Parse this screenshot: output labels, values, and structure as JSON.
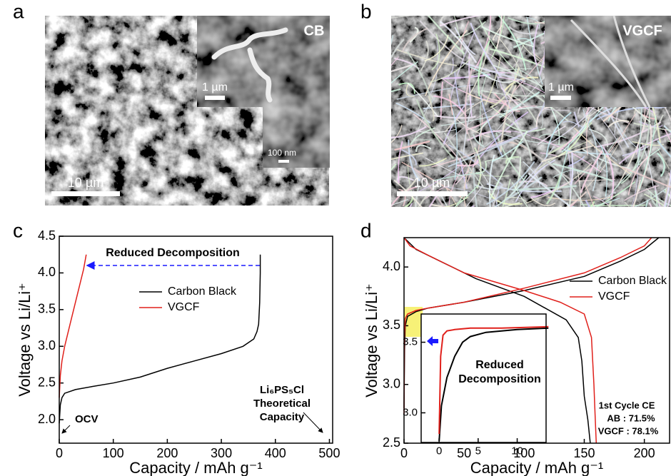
{
  "panels": [
    {
      "label": "a",
      "inset_label": "CB",
      "scale_bars": [
        "1 µm",
        "100 nm",
        "10 µm"
      ]
    },
    {
      "label": "b",
      "inset_label": "VGCF",
      "scale_bars": [
        "1 µm",
        "10 µm"
      ]
    }
  ],
  "chart_data": [
    {
      "type": "line",
      "panel": "c",
      "xlabel": "Capacity / mAh g⁻¹",
      "ylabel": "Voltage vs Li/Li⁺",
      "xlim": [
        0,
        506
      ],
      "ylim": [
        1.68,
        4.5
      ],
      "xticks": [
        0,
        100,
        200,
        300,
        400,
        500
      ],
      "yticks": [
        {
          "value": 2,
          "label": "2.0"
        },
        2.5,
        {
          "value": 3,
          "label": "3.0"
        },
        3.5,
        {
          "value": 4,
          "label": "4.0"
        },
        4.5
      ],
      "series": [
        {
          "name": "Carbon Black",
          "color": "#000000",
          "x": [
            0,
            2,
            5,
            10,
            30,
            60,
            100,
            150,
            200,
            250,
            300,
            340,
            360,
            366,
            369,
            371,
            372,
            372
          ],
          "values": [
            1.95,
            2.2,
            2.3,
            2.36,
            2.41,
            2.45,
            2.5,
            2.58,
            2.7,
            2.8,
            2.9,
            3.0,
            3.1,
            3.2,
            3.3,
            3.6,
            4.0,
            4.25
          ]
        },
        {
          "name": "VGCF",
          "color": "#e0201b",
          "x": [
            0,
            2,
            5,
            10,
            20,
            30,
            40,
            45,
            50
          ],
          "values": [
            2.3,
            2.6,
            2.8,
            3.0,
            3.3,
            3.6,
            3.9,
            4.05,
            4.25
          ]
        }
      ],
      "annotations": [
        "Reduced Decomposition",
        "OCV",
        "Li₆PS₅Cl",
        "Theoretical",
        "Capacity"
      ]
    },
    {
      "type": "line",
      "panel": "d",
      "xlabel": "Capacity / mAh g⁻¹",
      "ylabel": "Voltage vs Li/Li⁺",
      "xlim": [
        0,
        221
      ],
      "ylim": [
        2.5,
        4.25
      ],
      "xticks": [
        0,
        50,
        100,
        150,
        200
      ],
      "yticks": [
        2.5,
        {
          "value": 3,
          "label": "3.0"
        },
        3.5,
        {
          "value": 4,
          "label": "4.0"
        }
      ],
      "series": [
        {
          "name": "Carbon Black",
          "color": "#000000",
          "x": [
            0,
            0.5,
            1,
            3,
            10,
            20,
            50,
            100,
            150,
            180,
            200,
            212,
            null,
            0,
            10,
            30,
            60,
            100,
            135,
            145,
            148,
            150,
            153,
            155
          ],
          "values": [
            2.8,
            3.3,
            3.5,
            3.58,
            3.62,
            3.65,
            3.7,
            3.8,
            3.92,
            4.05,
            4.15,
            4.25,
            null,
            4.25,
            4.15,
            4.05,
            3.9,
            3.75,
            3.55,
            3.4,
            3.2,
            2.9,
            2.7,
            2.5
          ]
        },
        {
          "name": "VGCF",
          "color": "#e0201b",
          "x": [
            0,
            0.3,
            1,
            3,
            10,
            20,
            50,
            100,
            150,
            180,
            200,
            206,
            null,
            0,
            5,
            20,
            50,
            100,
            130,
            150,
            156,
            158,
            159,
            160
          ],
          "values": [
            2.75,
            3.4,
            3.56,
            3.6,
            3.63,
            3.65,
            3.7,
            3.82,
            3.95,
            4.08,
            4.18,
            4.25,
            null,
            4.25,
            4.18,
            4.1,
            3.95,
            3.8,
            3.7,
            3.6,
            3.4,
            3.0,
            2.75,
            2.5
          ]
        }
      ],
      "annotations": [
        "1st Cycle CE",
        "AB : 71.5%",
        "VGCF : 78.1%"
      ]
    },
    {
      "type": "line",
      "xlim": [
        -2.3,
        13.7
      ],
      "ylim": [
        2.79,
        3.7
      ],
      "xticks": [
        0,
        5,
        10
      ],
      "yticks": [
        {
          "value": 3,
          "label": "3.0"
        },
        3.5
      ],
      "series": [
        {
          "color": "#000000",
          "x": [
            0,
            0.3,
            1,
            2,
            3,
            4,
            6,
            10,
            14
          ],
          "values": [
            2.8,
            3.05,
            3.25,
            3.4,
            3.5,
            3.54,
            3.57,
            3.59,
            3.6
          ]
        },
        {
          "color": "#e0201b",
          "x": [
            0,
            0.2,
            0.5,
            1,
            2,
            4,
            8,
            14
          ],
          "values": [
            2.85,
            3.4,
            3.55,
            3.58,
            3.59,
            3.6,
            3.6,
            3.61
          ]
        }
      ],
      "annotations": [
        "Reduced",
        "Decomposition"
      ]
    }
  ]
}
